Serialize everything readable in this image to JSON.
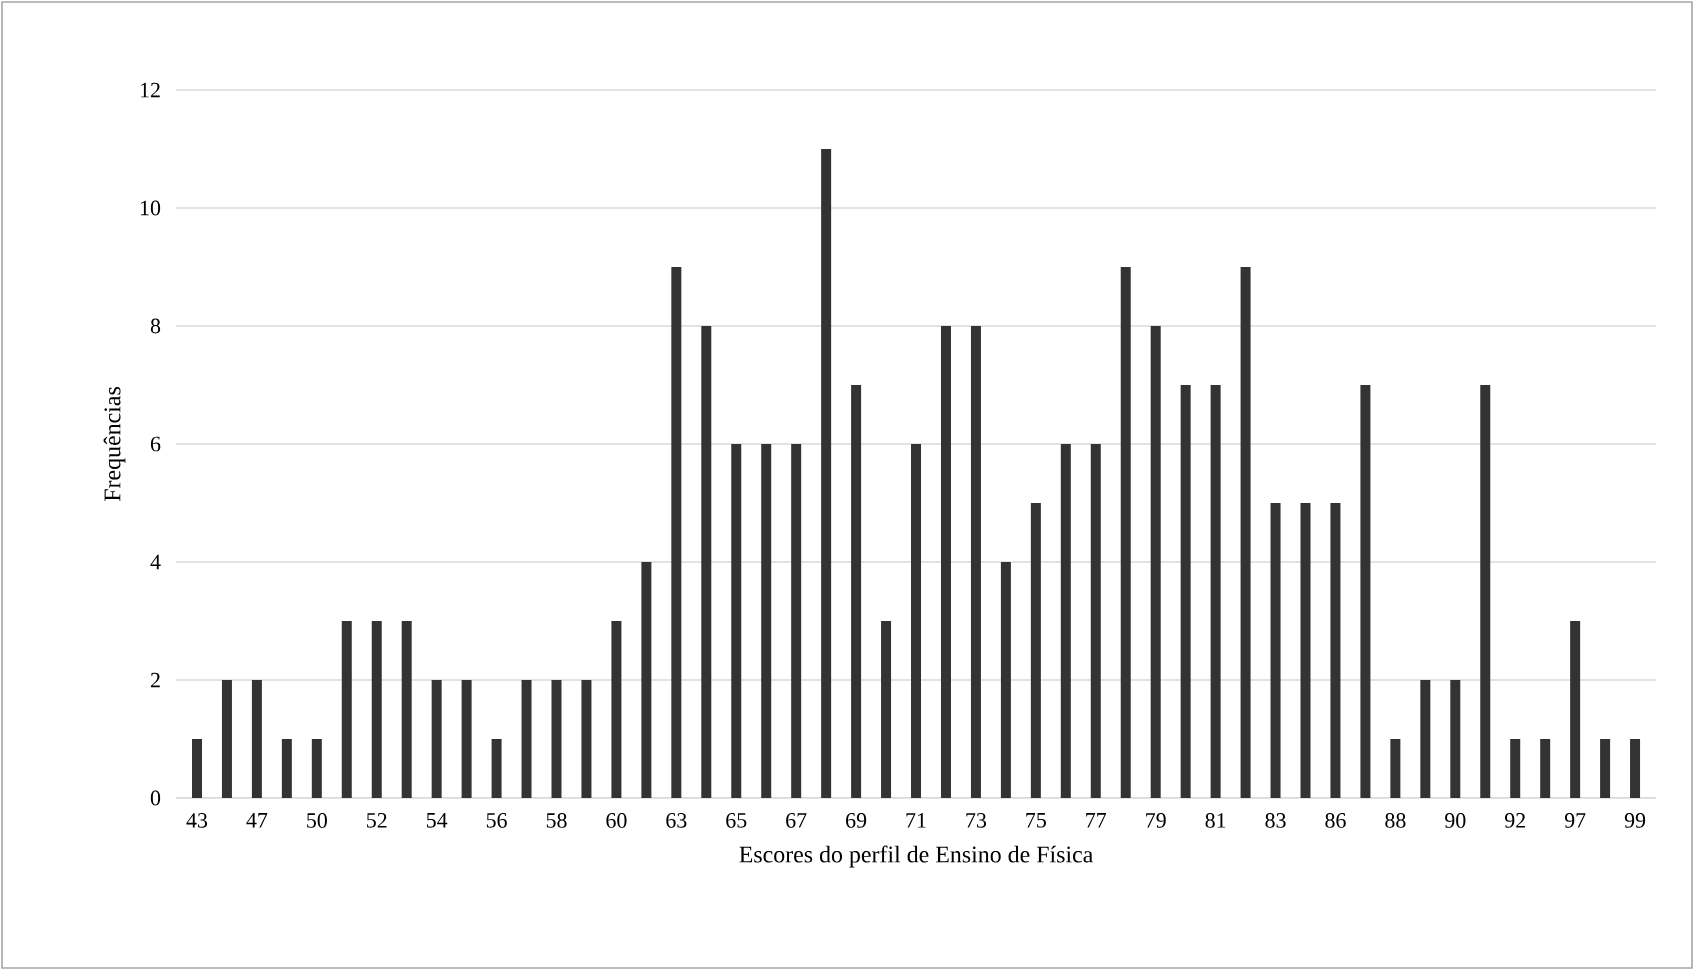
{
  "chart_data": {
    "type": "bar",
    "xlabel": "Escores do perfil de Ensino de Física",
    "ylabel": "Frequências",
    "categories": [
      "43",
      null,
      "47",
      null,
      "50",
      null,
      "52",
      null,
      "54",
      null,
      "56",
      null,
      "58",
      null,
      "60",
      null,
      "63",
      null,
      "65",
      null,
      "67",
      null,
      "69",
      null,
      "71",
      null,
      "73",
      null,
      "75",
      null,
      "77",
      null,
      "79",
      null,
      "81",
      null,
      "83",
      null,
      "86",
      null,
      "88",
      null,
      "90",
      null,
      "92",
      null,
      "97",
      null,
      "99"
    ],
    "values": [
      1,
      2,
      2,
      1,
      1,
      3,
      3,
      3,
      2,
      2,
      1,
      2,
      2,
      2,
      3,
      4,
      9,
      8,
      6,
      6,
      6,
      11,
      7,
      3,
      6,
      8,
      8,
      4,
      5,
      6,
      6,
      9,
      8,
      7,
      7,
      9,
      5,
      5,
      5,
      7,
      1,
      2,
      2,
      7,
      1,
      1,
      3,
      1,
      1
    ],
    "color": "#333333",
    "ylim": [
      0,
      12
    ],
    "yticks": [
      0,
      2,
      4,
      6,
      8,
      10,
      12
    ],
    "grid": "y"
  }
}
